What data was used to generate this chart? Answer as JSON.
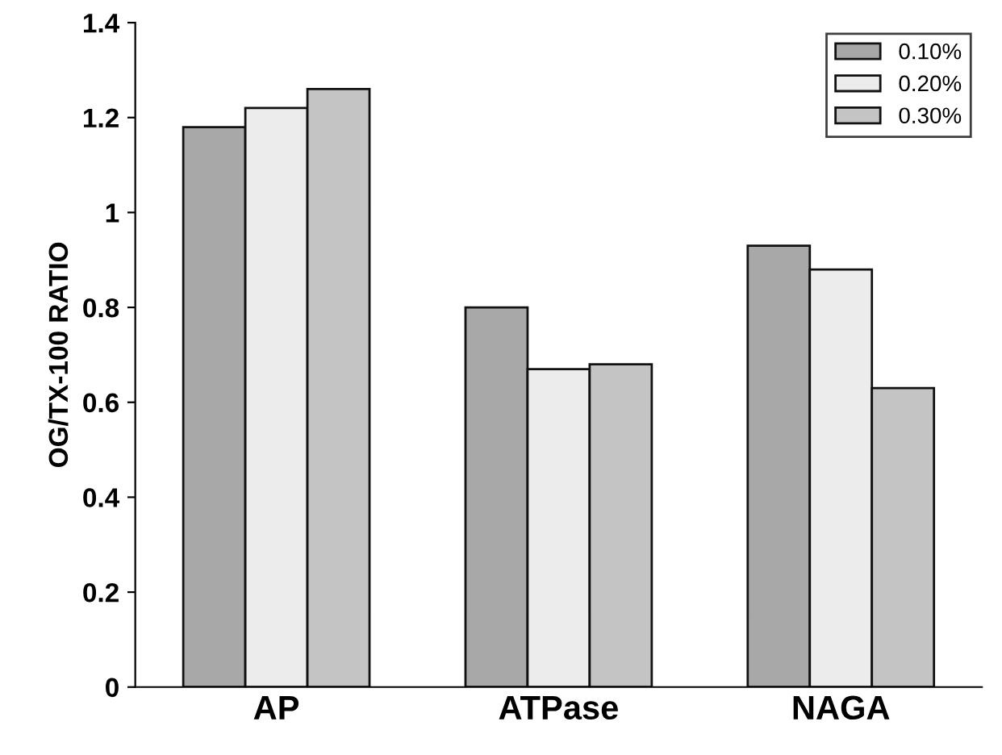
{
  "chart_data": {
    "type": "bar",
    "ylabel": "OG/TX-100 RATIO",
    "categories": [
      "AP",
      "ATPase",
      "NAGA"
    ],
    "series": [
      {
        "name": "0.10%",
        "color": "#a8a8a8",
        "values": [
          1.18,
          0.8,
          0.93
        ]
      },
      {
        "name": "0.20%",
        "color": "#ececec",
        "values": [
          1.22,
          0.67,
          0.88
        ]
      },
      {
        "name": "0.30%",
        "color": "#c4c4c4",
        "values": [
          1.26,
          0.68,
          0.63
        ]
      }
    ],
    "ylim": [
      0,
      1.4
    ],
    "yticks": [
      0,
      0.2,
      0.4,
      0.6,
      0.8,
      1,
      1.2,
      1.4
    ],
    "grid": false,
    "legend": "top right"
  }
}
